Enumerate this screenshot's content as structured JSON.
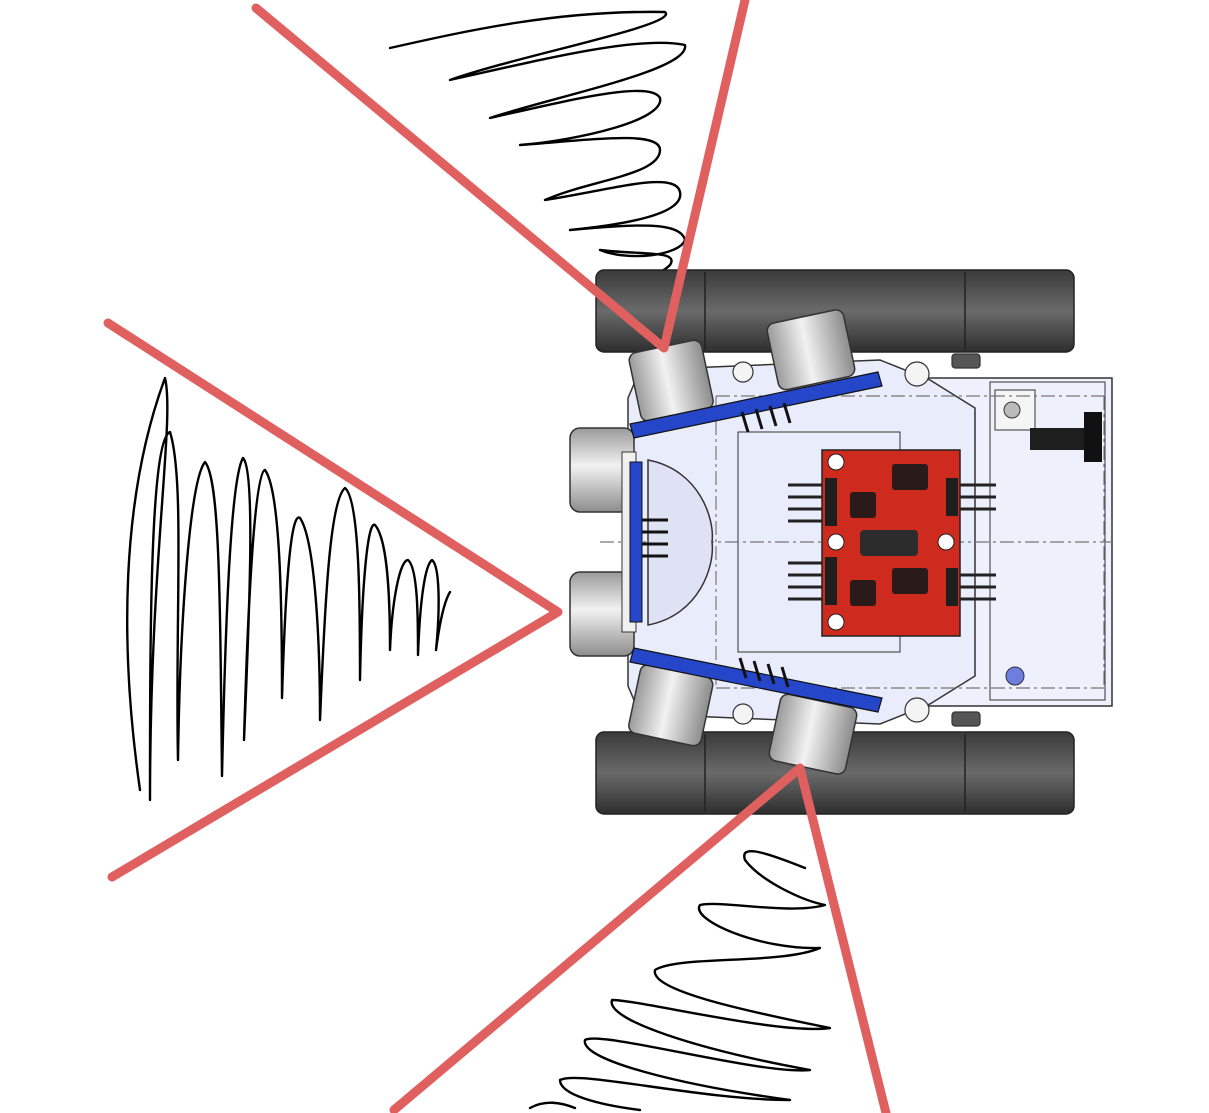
{
  "diagram": {
    "subject": "robot-top-view-with-ultrasonic-sensor-cones",
    "colors": {
      "cone": "#e06060",
      "scribble": "#000000",
      "tread": "#4a4a4a",
      "tread_dark": "#2f2f2f",
      "chassis": "#e9ecfb",
      "chassis_stroke": "#333333",
      "sensor_pcb": "#2546c8",
      "driver_board": "#cf2a1e",
      "sensor_can": "#c9c9c9"
    },
    "sensors": {
      "count": 5,
      "directions": [
        "left",
        "upper-left",
        "upper",
        "lower-left",
        "lower"
      ]
    },
    "cones": {
      "count": 3,
      "directions": [
        "left",
        "up",
        "down"
      ]
    }
  }
}
